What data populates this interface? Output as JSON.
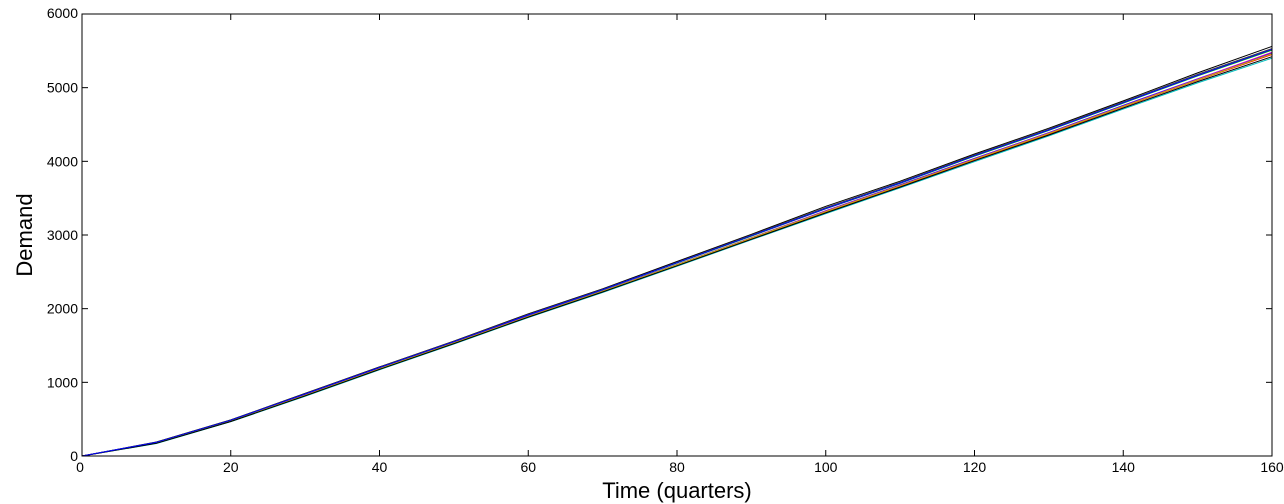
{
  "chart_data": {
    "type": "line",
    "title": "",
    "xlabel": "Time (quarters)",
    "ylabel": "Demand",
    "xlim": [
      0,
      160
    ],
    "ylim": [
      0,
      6000
    ],
    "xticks": [
      0,
      20,
      40,
      60,
      80,
      100,
      120,
      140,
      160
    ],
    "yticks": [
      0,
      1000,
      2000,
      3000,
      4000,
      5000,
      6000
    ],
    "xtick_labels": [
      "0",
      "20",
      "40",
      "60",
      "80",
      "100",
      "120",
      "140",
      "160"
    ],
    "ytick_labels": [
      "0",
      "1000",
      "2000",
      "3000",
      "4000",
      "5000",
      "6000"
    ],
    "grid": false,
    "legend": "none",
    "x": [
      0,
      10,
      20,
      30,
      40,
      50,
      60,
      70,
      80,
      90,
      100,
      110,
      120,
      130,
      140,
      150,
      160
    ],
    "series": [
      {
        "color": "#000000",
        "values": [
          0,
          190,
          490,
          850,
          1210,
          1560,
          1930,
          2270,
          2640,
          3010,
          3390,
          3730,
          4100,
          4450,
          4820,
          5200,
          5560
        ]
      },
      {
        "color": "#0000ff",
        "values": [
          0,
          180,
          480,
          830,
          1190,
          1540,
          1900,
          2240,
          2600,
          2960,
          3330,
          3680,
          4040,
          4390,
          4760,
          5120,
          5470
        ]
      },
      {
        "color": "#00aa00",
        "values": [
          0,
          185,
          485,
          840,
          1200,
          1550,
          1915,
          2255,
          2620,
          2985,
          3355,
          3700,
          4070,
          4420,
          4790,
          5160,
          5510
        ]
      },
      {
        "color": "#ff0000",
        "values": [
          0,
          175,
          470,
          820,
          1180,
          1530,
          1890,
          2230,
          2590,
          2950,
          3310,
          3660,
          4020,
          4370,
          4740,
          5100,
          5450
        ]
      },
      {
        "color": "#00bfbf",
        "values": [
          0,
          170,
          465,
          810,
          1170,
          1520,
          1880,
          2220,
          2575,
          2935,
          3290,
          3640,
          3995,
          4345,
          4710,
          5065,
          5400
        ]
      },
      {
        "color": "#bf00bf",
        "values": [
          0,
          182,
          478,
          828,
          1188,
          1538,
          1898,
          2238,
          2598,
          2962,
          3328,
          3676,
          4036,
          4386,
          4754,
          5116,
          5480
        ]
      },
      {
        "color": "#bfbf00",
        "values": [
          0,
          178,
          474,
          824,
          1184,
          1534,
          1894,
          2234,
          2594,
          2956,
          3318,
          3668,
          4028,
          4378,
          4746,
          5106,
          5460
        ]
      },
      {
        "color": "#404040",
        "values": [
          0,
          188,
          488,
          846,
          1206,
          1556,
          1922,
          2262,
          2630,
          2998,
          3372,
          3716,
          4086,
          4436,
          4806,
          5180,
          5530
        ]
      },
      {
        "color": "#000000",
        "values": [
          0,
          172,
          468,
          816,
          1176,
          1526,
          1886,
          2226,
          2582,
          2942,
          3300,
          3650,
          4008,
          4358,
          4724,
          5082,
          5420
        ]
      },
      {
        "color": "#0000ff",
        "values": [
          0,
          186,
          486,
          842,
          1202,
          1552,
          1916,
          2258,
          2624,
          2990,
          3360,
          3706,
          4076,
          4426,
          4796,
          5166,
          5520
        ]
      }
    ]
  }
}
